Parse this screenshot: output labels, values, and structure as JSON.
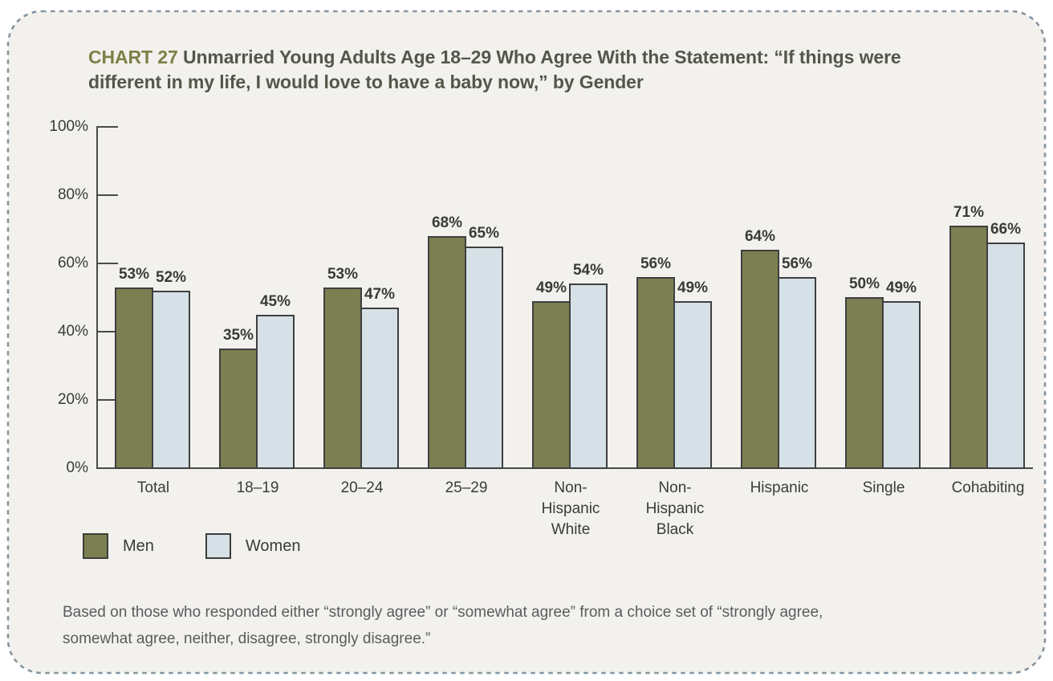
{
  "header": {
    "chart_label": "CHART 27",
    "title": "Unmarried Young Adults Age 18–29 Who Agree With the Statement: “If things were different in my life, I would love to have a baby now,” by Gender"
  },
  "chart_data": {
    "type": "bar",
    "categories": [
      "Total",
      "18–19",
      "20–24",
      "25–29",
      "Non-Hispanic White",
      "Non-Hispanic Black",
      "Hispanic",
      "Single",
      "Cohabiting"
    ],
    "series": [
      {
        "name": "Men",
        "color": "#7c7f51",
        "values": [
          53,
          35,
          53,
          68,
          49,
          56,
          64,
          50,
          71
        ]
      },
      {
        "name": "Women",
        "color": "#d6e1e7",
        "values": [
          52,
          45,
          47,
          65,
          54,
          49,
          56,
          49,
          66
        ]
      }
    ],
    "value_suffix": "%",
    "ylim": [
      0,
      100
    ],
    "yticks": [
      0,
      20,
      40,
      60,
      80,
      100
    ],
    "ytick_suffix": "%",
    "grid": false,
    "legend_position": "bottom-left"
  },
  "footnote": "Based on those who responded either “strongly agree” or “somewhat agree” from a choice set of “strongly agree, somewhat agree, neither, disagree, strongly disagree.”",
  "colors": {
    "page_background": "#ffffff",
    "panel_background": "#f2f1ed",
    "panel_border": "#8495a1",
    "axis": "#4a4a4a",
    "bar_outline": "#3f3f3f",
    "title_accent": "#7d7f45",
    "title_text": "#54564b",
    "label_text": "#3a3a3a",
    "footnote_text": "#5a5b5d"
  }
}
